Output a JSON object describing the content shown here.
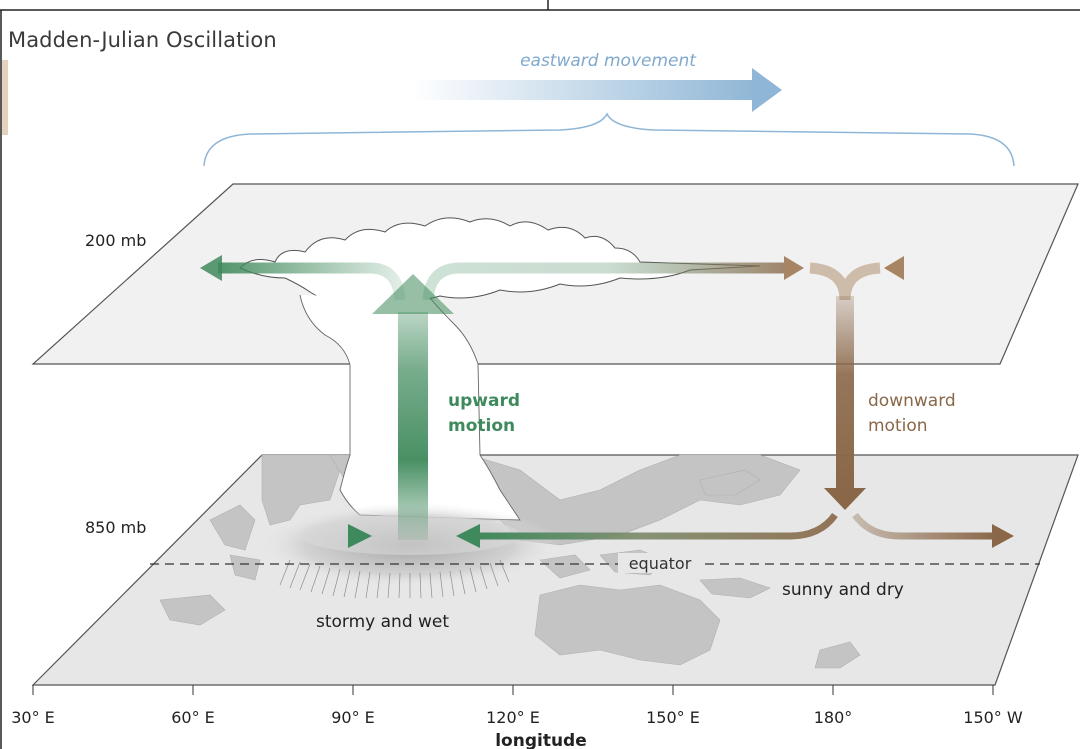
{
  "title": "Madden-Julian Oscillation",
  "eastward_label": "eastward movement",
  "levels": {
    "upper": "200 mb",
    "lower": "850 mb"
  },
  "upward_label": [
    "upward",
    "motion"
  ],
  "downward_label": [
    "downward",
    "motion"
  ],
  "equator_label": "equator",
  "stormy_label": "stormy and wet",
  "sunny_label": "sunny and dry",
  "xlabel": "longitude",
  "ticks": [
    "30° E",
    "60° E",
    "90° E",
    "120° E",
    "150° E",
    "180°",
    "150° W"
  ],
  "colors": {
    "green": "#3f8a5c",
    "brown": "#8a6748",
    "blue": "#8fb6d6",
    "plane": "#f0f0f0",
    "land": "#c9c9c9"
  }
}
